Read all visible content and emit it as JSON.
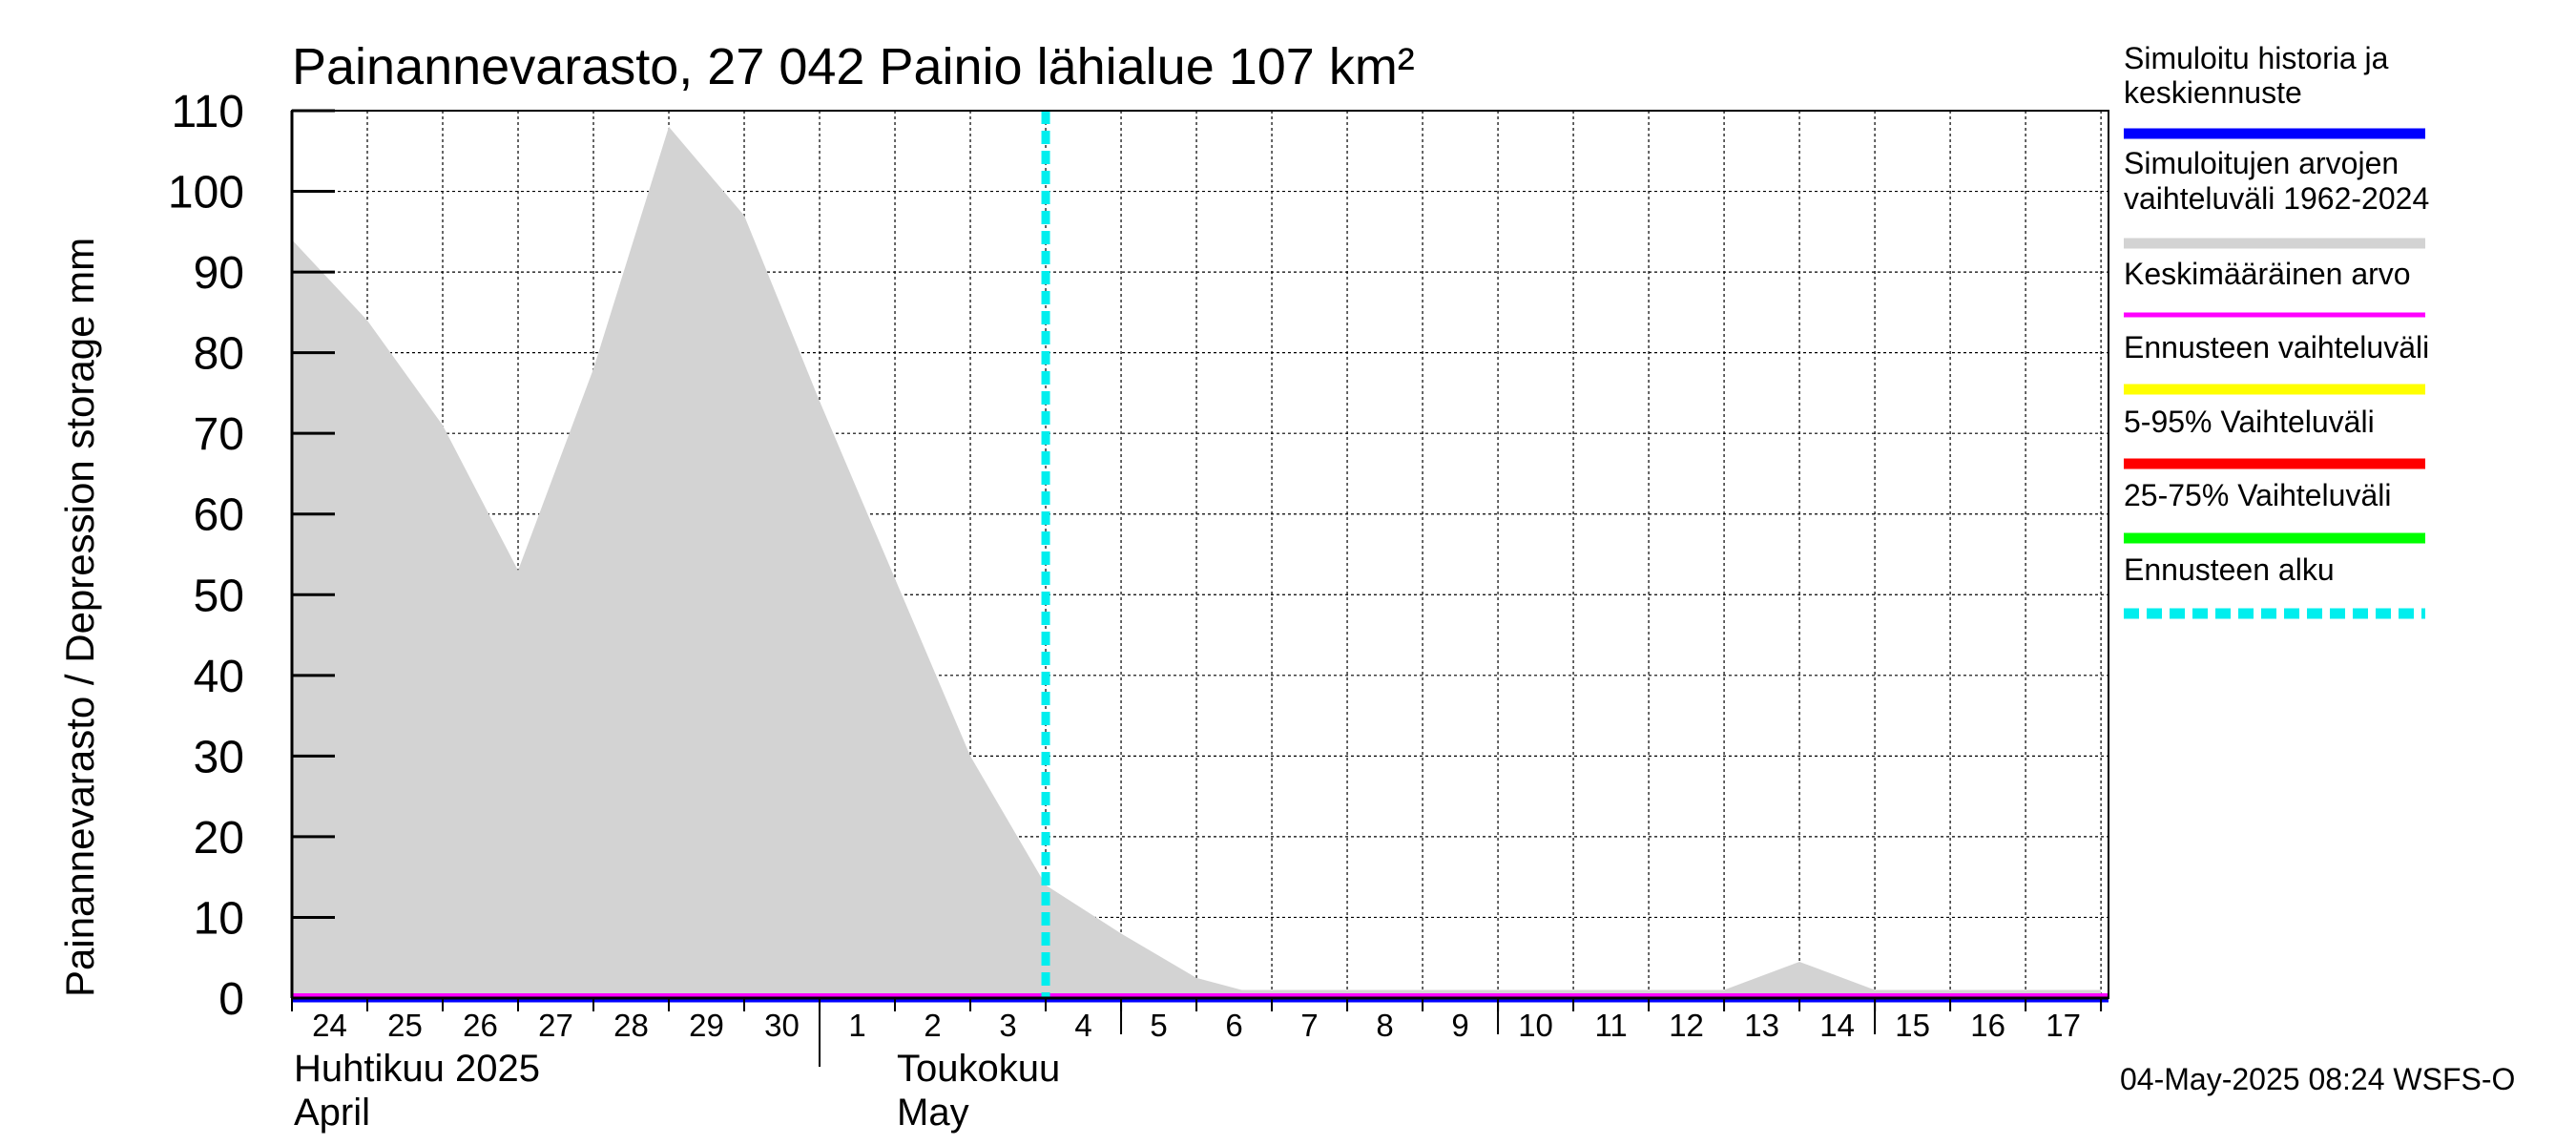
{
  "chart_data": {
    "type": "area",
    "title": "Painannevarasto, 27 042 Painio lähialue 107 km²",
    "ylabel": "Painannevarasto / Depression storage    mm",
    "ylim": [
      0,
      110
    ],
    "yticks": [
      0,
      10,
      20,
      30,
      40,
      50,
      60,
      70,
      80,
      90,
      100,
      110
    ],
    "x_days": [
      "24",
      "25",
      "26",
      "27",
      "28",
      "29",
      "30",
      "1",
      "2",
      "3",
      "4",
      "5",
      "6",
      "7",
      "8",
      "9",
      "10",
      "11",
      "12",
      "13",
      "14",
      "15",
      "16",
      "17"
    ],
    "month_labels": [
      {
        "line1": "Huhtikuu  2025",
        "line2": "April",
        "start_index": 0
      },
      {
        "line1": "Toukokuu",
        "line2": "May",
        "start_index": 8
      }
    ],
    "range_band": {
      "name": "Simuloitujen arvojen vaihteluväli 1962-2024",
      "t": [
        0,
        1,
        2,
        3,
        4,
        5,
        6,
        7,
        8,
        9,
        10,
        11,
        12,
        12.6,
        13,
        14,
        15,
        16,
        17,
        18,
        19,
        20,
        21,
        22,
        23,
        24
      ],
      "upper": [
        94,
        84,
        71,
        53,
        78,
        108,
        97,
        74,
        52,
        30,
        14,
        8,
        2.5,
        1,
        1,
        1,
        1,
        1,
        1,
        1,
        1,
        4.5,
        1,
        1,
        1,
        1
      ],
      "lower": [
        0,
        0,
        0,
        0,
        0,
        0,
        0,
        0,
        0,
        0,
        0,
        0,
        0,
        0,
        0,
        0,
        0,
        0,
        0,
        0,
        0,
        0,
        0,
        0,
        0,
        0
      ]
    },
    "series": [
      {
        "name": "Simuloitu historia ja keskiennuste",
        "color": "#0000ff",
        "values": [
          0,
          0
        ]
      },
      {
        "name": "Keskimääräinen arvo",
        "color": "#ff00ff",
        "values": [
          0.3,
          0.3
        ]
      }
    ],
    "forecast_start_t": 10.0,
    "legend": [
      {
        "label": "Simuloitu historia ja keskiennuste",
        "color": "#0000ff",
        "style": "solid"
      },
      {
        "label": "Simuloitujen arvojen vaihteluväli 1962-2024",
        "color": "#d3d3d3",
        "style": "solid"
      },
      {
        "label": "Keskimääräinen arvo",
        "color": "#ff00ff",
        "style": "thin"
      },
      {
        "label": "Ennusteen vaihteluväli",
        "color": "#ffff00",
        "style": "solid"
      },
      {
        "label": "5-95% Vaihteluväli",
        "color": "#ff0000",
        "style": "solid"
      },
      {
        "label": "25-75% Vaihteluväli",
        "color": "#00ff00",
        "style": "solid"
      },
      {
        "label": "Ennusteen alku",
        "color": "#00eeee",
        "style": "dashed"
      }
    ],
    "footer": "04-May-2025 08:24 WSFS-O"
  }
}
